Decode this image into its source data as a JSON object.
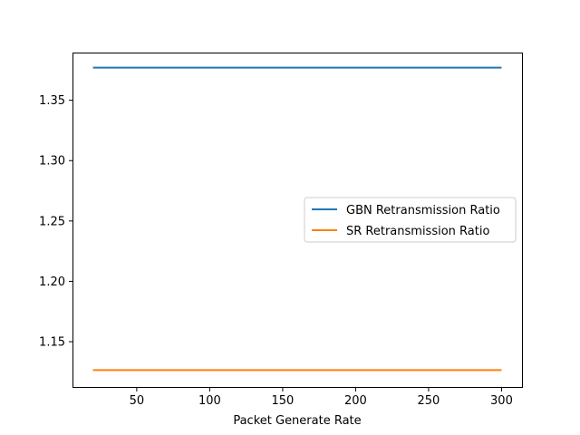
{
  "chart_data": {
    "type": "line",
    "title": "",
    "xlabel": "Packet Generate Rate",
    "ylabel": "",
    "xlim": [
      6,
      314
    ],
    "ylim": [
      1.1125,
      1.3895
    ],
    "x_ticks": [
      50,
      100,
      150,
      200,
      250,
      300
    ],
    "y_ticks": [
      1.15,
      1.2,
      1.25,
      1.3,
      1.35
    ],
    "x_tick_labels": [
      "50",
      "100",
      "150",
      "200",
      "250",
      "300"
    ],
    "y_tick_labels": [
      "1.15",
      "1.20",
      "1.25",
      "1.30",
      "1.35"
    ],
    "grid": false,
    "legend_position": "center-right",
    "series": [
      {
        "name": "GBN Retransmission Ratio",
        "color": "#1f77b4",
        "x": [
          20,
          300
        ],
        "y": [
          1.377,
          1.377
        ]
      },
      {
        "name": "SR Retransmission Ratio",
        "color": "#ff7f0e",
        "x": [
          20,
          300
        ],
        "y": [
          1.1265,
          1.1265
        ]
      }
    ]
  }
}
